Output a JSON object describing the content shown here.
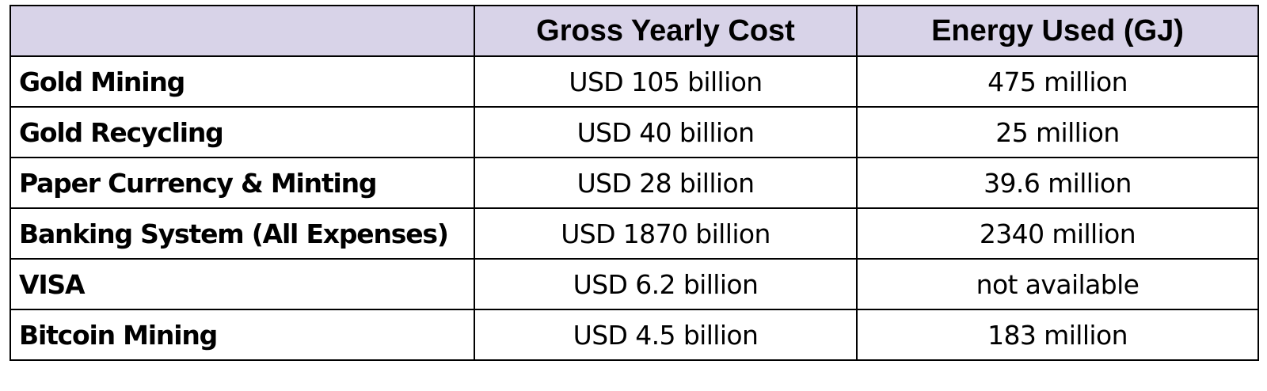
{
  "table": {
    "header_bg": "#d8d3e8",
    "columns": [
      "",
      "Gross Yearly Cost",
      "Energy Used (GJ)"
    ],
    "rows": [
      [
        "Gold Mining",
        "USD 105 billion",
        "475 million"
      ],
      [
        "Gold Recycling",
        "USD 40 billion",
        "25 million"
      ],
      [
        "Paper Currency & Minting",
        "USD 28 billion",
        "39.6 million"
      ],
      [
        "Banking System (All Expenses)",
        "USD 1870 billion",
        "2340 million"
      ],
      [
        "VISA",
        "USD 6.2 billion",
        "not available"
      ],
      [
        "Bitcoin Mining",
        "USD 4.5 billion",
        "183 million"
      ]
    ]
  }
}
